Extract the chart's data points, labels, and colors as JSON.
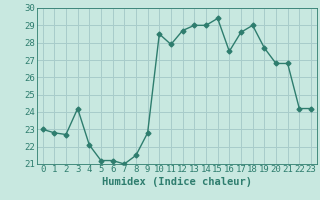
{
  "x": [
    0,
    1,
    2,
    3,
    4,
    5,
    6,
    7,
    8,
    9,
    10,
    11,
    12,
    13,
    14,
    15,
    16,
    17,
    18,
    19,
    20,
    21,
    22,
    23
  ],
  "y": [
    23.0,
    22.8,
    22.7,
    24.2,
    22.1,
    21.2,
    21.2,
    21.0,
    21.5,
    22.8,
    28.5,
    27.9,
    28.7,
    29.0,
    29.0,
    29.4,
    27.5,
    28.6,
    29.0,
    27.7,
    26.8,
    26.8,
    24.2,
    24.2
  ],
  "line_color": "#2e7d6e",
  "marker": "D",
  "marker_size": 2.5,
  "bg_color": "#c8e8e0",
  "grid_color": "#a8ccca",
  "xlabel": "Humidex (Indice chaleur)",
  "ylim": [
    21,
    30
  ],
  "xlim": [
    -0.5,
    23.5
  ],
  "yticks": [
    21,
    22,
    23,
    24,
    25,
    26,
    27,
    28,
    29,
    30
  ],
  "xticks": [
    0,
    1,
    2,
    3,
    4,
    5,
    6,
    7,
    8,
    9,
    10,
    11,
    12,
    13,
    14,
    15,
    16,
    17,
    18,
    19,
    20,
    21,
    22,
    23
  ],
  "tick_color": "#2e7d6e",
  "label_fontsize": 7.5,
  "tick_fontsize": 6.5
}
